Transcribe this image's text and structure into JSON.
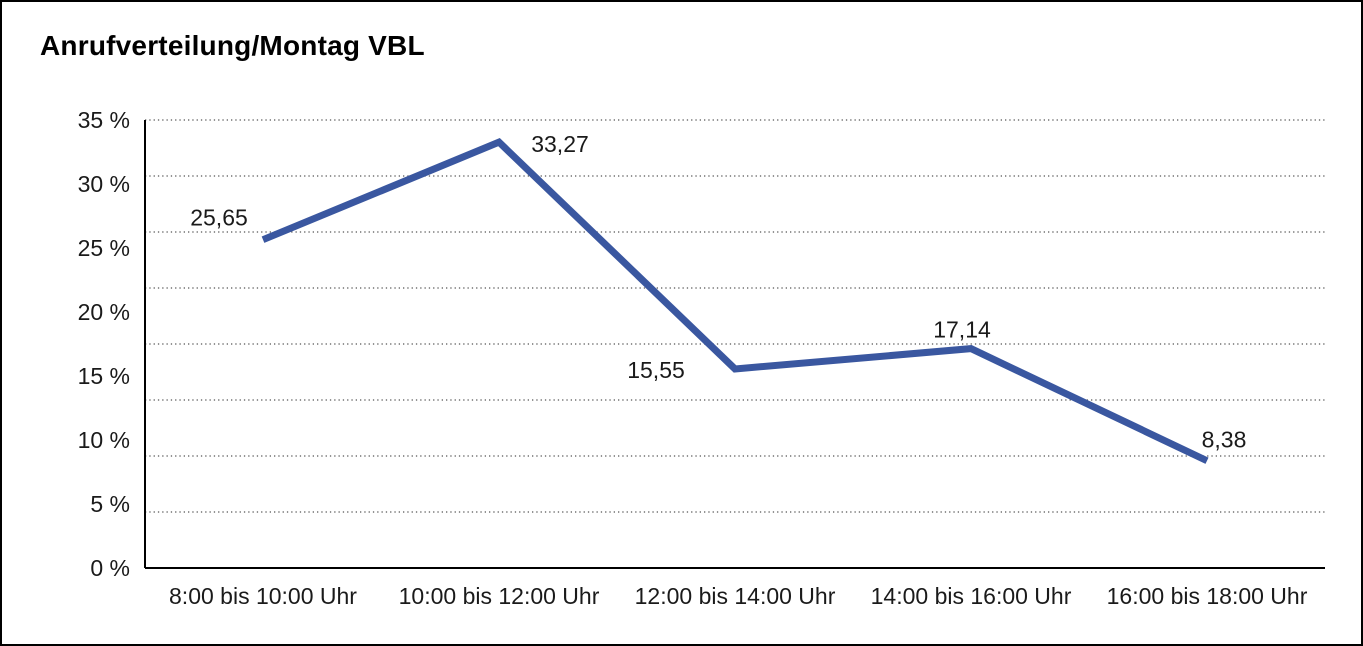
{
  "window": {
    "background": "#FFFFFF",
    "border_color": "#000000"
  },
  "chart_data": {
    "type": "line",
    "title": "Anrufverteilung/Montag VBL",
    "categories": [
      "8:00 bis 10:00 Uhr",
      "10:00 bis 12:00 Uhr",
      "12:00 bis 14:00 Uhr",
      "14:00 bis 16:00 Uhr",
      "16:00 bis 18:00 Uhr"
    ],
    "series": [
      {
        "name": "Anrufverteilung Montag VBL",
        "values": [
          25.65,
          33.27,
          15.55,
          17.14,
          8.38
        ],
        "value_labels": [
          "25,65",
          "33,27",
          "15,55",
          "17,14",
          "8,38"
        ]
      }
    ],
    "y_ticks": [
      "35 %",
      "30 %",
      "25 %",
      "20 %",
      "15 %",
      "10 %",
      "5 %",
      "0 %"
    ],
    "ylim": [
      0,
      35
    ],
    "xlabel": "",
    "ylabel": "",
    "grid": true,
    "grid_style": "dotted",
    "gridline_count": 9,
    "legend_position": "none",
    "colors": {
      "line": "#3A57A0",
      "axis": "#000000",
      "grid_dots": "#555555",
      "text": "#1A1A1A",
      "title": "#000000"
    }
  }
}
